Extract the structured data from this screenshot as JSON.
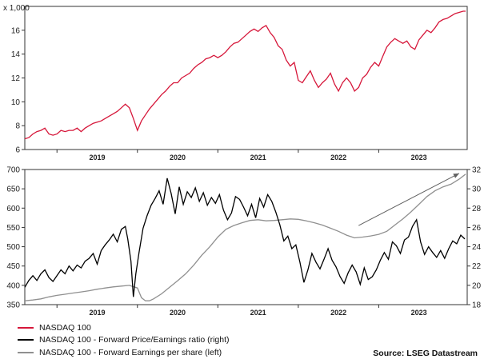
{
  "chart_data": [
    {
      "type": "line",
      "title": "",
      "ylabel_unit": "x 1,000",
      "ylim": [
        6,
        18
      ],
      "yticks": [
        6,
        8,
        10,
        12,
        14,
        16
      ],
      "xlim": [
        2018.6,
        2024.1
      ],
      "xtick_labels": [
        "2019",
        "2020",
        "2021",
        "2022",
        "2023"
      ],
      "xtick_positions": [
        2019.0,
        2020.0,
        2021.0,
        2022.0,
        2023.0
      ],
      "series": [
        {
          "name": "NASDAQ 100",
          "color": "#d6173a",
          "x": [
            2018.6,
            2018.65,
            2018.7,
            2018.75,
            2018.8,
            2018.85,
            2018.9,
            2018.95,
            2019.0,
            2019.05,
            2019.1,
            2019.15,
            2019.2,
            2019.25,
            2019.3,
            2019.35,
            2019.4,
            2019.45,
            2019.5,
            2019.55,
            2019.6,
            2019.65,
            2019.7,
            2019.75,
            2019.8,
            2019.85,
            2019.9,
            2019.95,
            2020.0,
            2020.05,
            2020.1,
            2020.15,
            2020.2,
            2020.25,
            2020.3,
            2020.35,
            2020.4,
            2020.45,
            2020.5,
            2020.55,
            2020.6,
            2020.65,
            2020.7,
            2020.75,
            2020.8,
            2020.85,
            2020.9,
            2020.95,
            2021.0,
            2021.05,
            2021.1,
            2021.15,
            2021.2,
            2021.25,
            2021.3,
            2021.35,
            2021.4,
            2021.45,
            2021.5,
            2021.55,
            2021.6,
            2021.65,
            2021.7,
            2021.75,
            2021.8,
            2021.85,
            2021.9,
            2021.95,
            2022.0,
            2022.05,
            2022.1,
            2022.15,
            2022.2,
            2022.25,
            2022.3,
            2022.35,
            2022.4,
            2022.45,
            2022.5,
            2022.55,
            2022.6,
            2022.65,
            2022.7,
            2022.75,
            2022.8,
            2022.85,
            2022.9,
            2022.95,
            2023.0,
            2023.05,
            2023.1,
            2023.15,
            2023.2,
            2023.25,
            2023.3,
            2023.35,
            2023.4,
            2023.45,
            2023.5,
            2023.55,
            2023.6,
            2023.65,
            2023.7,
            2023.75,
            2023.8,
            2023.85,
            2023.9,
            2023.95,
            2024.0,
            2024.05,
            2024.08
          ],
          "values": [
            6.9,
            7.0,
            7.3,
            7.5,
            7.6,
            7.8,
            7.3,
            7.2,
            7.3,
            7.6,
            7.5,
            7.6,
            7.6,
            7.8,
            7.5,
            7.8,
            8.0,
            8.2,
            8.3,
            8.4,
            8.6,
            8.8,
            9.0,
            9.2,
            9.5,
            9.8,
            9.5,
            8.6,
            7.6,
            8.4,
            8.9,
            9.4,
            9.8,
            10.2,
            10.6,
            10.9,
            11.3,
            11.6,
            11.6,
            12.0,
            12.2,
            12.4,
            12.8,
            13.1,
            13.3,
            13.6,
            13.7,
            13.9,
            13.7,
            13.9,
            14.2,
            14.6,
            14.9,
            15.0,
            15.3,
            15.6,
            15.9,
            16.1,
            15.9,
            16.2,
            16.4,
            15.8,
            15.4,
            14.7,
            14.4,
            13.5,
            13.0,
            13.3,
            11.8,
            11.6,
            12.1,
            12.6,
            11.8,
            11.2,
            11.6,
            11.9,
            12.4,
            11.5,
            10.9,
            11.6,
            12.0,
            11.6,
            10.9,
            11.2,
            12.0,
            12.3,
            12.9,
            13.3,
            13.0,
            13.8,
            14.6,
            15.0,
            15.3,
            15.1,
            14.9,
            15.1,
            14.6,
            14.4,
            15.2,
            15.6,
            16.0,
            15.8,
            16.2,
            16.7,
            16.9,
            17.0,
            17.2,
            17.4,
            17.5,
            17.6,
            17.6
          ]
        }
      ]
    },
    {
      "type": "line",
      "title": "",
      "ylim_left": [
        350,
        700
      ],
      "yticks_left": [
        350,
        400,
        450,
        500,
        550,
        600,
        650,
        700
      ],
      "ylim_right": [
        18,
        32
      ],
      "yticks_right": [
        18,
        20,
        22,
        24,
        26,
        28,
        30,
        32
      ],
      "xlim": [
        2018.6,
        2024.1
      ],
      "xtick_labels": [
        "2019",
        "2020",
        "2021",
        "2022",
        "2023"
      ],
      "xtick_positions": [
        2019.0,
        2020.0,
        2021.0,
        2022.0,
        2023.0
      ],
      "series": [
        {
          "name": "NASDAQ 100 - Forward Price/Earnings ratio (right)",
          "axis": "right",
          "color": "#000000",
          "x": [
            2018.6,
            2018.65,
            2018.7,
            2018.75,
            2018.8,
            2018.85,
            2018.9,
            2018.95,
            2019.0,
            2019.05,
            2019.1,
            2019.15,
            2019.2,
            2019.25,
            2019.3,
            2019.35,
            2019.4,
            2019.45,
            2019.5,
            2019.55,
            2019.6,
            2019.65,
            2019.7,
            2019.75,
            2019.8,
            2019.85,
            2019.88,
            2019.92,
            2019.95,
            2019.98,
            2020.02,
            2020.07,
            2020.12,
            2020.17,
            2020.22,
            2020.27,
            2020.32,
            2020.37,
            2020.42,
            2020.47,
            2020.52,
            2020.57,
            2020.62,
            2020.67,
            2020.72,
            2020.77,
            2020.82,
            2020.87,
            2020.92,
            2020.97,
            2021.02,
            2021.07,
            2021.12,
            2021.17,
            2021.22,
            2021.27,
            2021.32,
            2021.37,
            2021.42,
            2021.47,
            2021.52,
            2021.57,
            2021.62,
            2021.67,
            2021.72,
            2021.77,
            2021.82,
            2021.87,
            2021.92,
            2021.97,
            2022.02,
            2022.07,
            2022.12,
            2022.17,
            2022.22,
            2022.27,
            2022.32,
            2022.37,
            2022.42,
            2022.47,
            2022.52,
            2022.57,
            2022.62,
            2022.67,
            2022.72,
            2022.77,
            2022.82,
            2022.87,
            2022.92,
            2022.97,
            2023.02,
            2023.07,
            2023.12,
            2023.17,
            2023.22,
            2023.27,
            2023.32,
            2023.37,
            2023.42,
            2023.47,
            2023.52,
            2023.57,
            2023.62,
            2023.67,
            2023.72,
            2023.77,
            2023.82,
            2023.87,
            2023.92,
            2023.97,
            2024.02,
            2024.07
          ],
          "values": [
            19.8,
            20.5,
            21.0,
            20.5,
            21.2,
            21.6,
            20.8,
            20.4,
            21.0,
            21.6,
            21.2,
            22.0,
            21.5,
            22.1,
            21.8,
            22.5,
            22.8,
            23.3,
            22.2,
            23.6,
            24.2,
            24.7,
            25.3,
            24.5,
            25.8,
            26.1,
            24.8,
            22.5,
            18.8,
            21.2,
            23.4,
            25.9,
            27.2,
            28.3,
            29.0,
            29.8,
            28.4,
            31.1,
            29.5,
            27.4,
            30.2,
            28.4,
            29.7,
            29.1,
            30.1,
            28.7,
            29.6,
            28.3,
            29.1,
            28.5,
            29.4,
            27.8,
            26.8,
            27.5,
            29.2,
            28.9,
            28.1,
            27.2,
            28.4,
            27.0,
            29.0,
            28.1,
            29.4,
            28.7,
            27.6,
            26.3,
            24.6,
            25.1,
            23.8,
            24.2,
            22.4,
            20.3,
            21.6,
            23.3,
            22.4,
            21.7,
            22.7,
            23.8,
            22.6,
            21.9,
            20.9,
            20.2,
            21.3,
            22.1,
            21.4,
            20.1,
            21.8,
            20.6,
            20.9,
            21.6,
            22.6,
            23.4,
            22.7,
            24.5,
            24.1,
            23.3,
            24.7,
            25.0,
            26.1,
            26.8,
            24.5,
            23.2,
            24.0,
            23.4,
            22.9,
            23.6,
            22.8,
            23.8,
            24.6,
            24.3,
            25.2,
            24.8
          ]
        },
        {
          "name": "NASDAQ 100 - Forward Earnings per share (left)",
          "axis": "left",
          "color": "#909090",
          "x": [
            2018.6,
            2018.7,
            2018.8,
            2018.9,
            2019.0,
            2019.1,
            2019.2,
            2019.3,
            2019.4,
            2019.5,
            2019.6,
            2019.7,
            2019.8,
            2019.9,
            2020.0,
            2020.05,
            2020.1,
            2020.15,
            2020.2,
            2020.3,
            2020.4,
            2020.5,
            2020.6,
            2020.7,
            2020.8,
            2020.9,
            2021.0,
            2021.1,
            2021.2,
            2021.3,
            2021.4,
            2021.5,
            2021.6,
            2021.7,
            2021.8,
            2021.9,
            2022.0,
            2022.1,
            2022.2,
            2022.3,
            2022.4,
            2022.5,
            2022.6,
            2022.7,
            2022.8,
            2022.9,
            2023.0,
            2023.1,
            2023.2,
            2023.3,
            2023.4,
            2023.5,
            2023.6,
            2023.7,
            2023.8,
            2023.9,
            2024.0,
            2024.08
          ],
          "values": [
            360,
            362,
            365,
            370,
            374,
            377,
            380,
            383,
            386,
            390,
            393,
            396,
            398,
            400,
            393,
            368,
            360,
            360,
            365,
            378,
            395,
            412,
            430,
            452,
            478,
            500,
            525,
            545,
            555,
            562,
            568,
            570,
            567,
            568,
            570,
            572,
            571,
            567,
            562,
            556,
            548,
            540,
            530,
            523,
            525,
            528,
            532,
            540,
            556,
            572,
            590,
            610,
            630,
            645,
            655,
            662,
            675,
            688
          ]
        }
      ],
      "annotations": [
        {
          "type": "arrow",
          "from": [
            2022.75,
            555
          ],
          "to": [
            2024.0,
            690
          ],
          "color": "#606060"
        }
      ]
    }
  ],
  "legend": [
    {
      "label": "NASDAQ 100",
      "color": "#d6173a"
    },
    {
      "label": "NASDAQ 100 - Forward Price/Earnings ratio (right)",
      "color": "#000000"
    },
    {
      "label": "NASDAQ 100 - Forward Earnings per share (left)",
      "color": "#909090"
    }
  ],
  "source": "Source: LSEG Datastream"
}
